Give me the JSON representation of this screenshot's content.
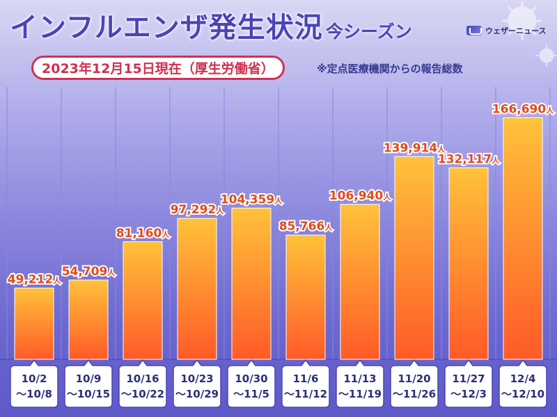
{
  "header": {
    "title": "インフルエンザ発生状況",
    "subtitle": "今シーズン",
    "date_label": "2023年12月15日現在（厚生労働省）",
    "note": "※定点医療機関からの報告総数",
    "brand": "ウェザーニュース"
  },
  "colors": {
    "bar_top": "#ffc23a",
    "bar_bottom": "#ff5a28",
    "value_text": "#e34a1a",
    "title": "#4a44b8",
    "accent": "#d03050"
  },
  "chart_data": {
    "type": "bar",
    "unit": "人",
    "categories": [
      [
        "10/2",
        "〜10/8"
      ],
      [
        "10/9",
        "〜10/15"
      ],
      [
        "10/16",
        "〜10/22"
      ],
      [
        "10/23",
        "〜10/29"
      ],
      [
        "10/30",
        "〜11/5"
      ],
      [
        "11/6",
        "〜11/12"
      ],
      [
        "11/13",
        "〜11/19"
      ],
      [
        "11/20",
        "〜11/26"
      ],
      [
        "11/27",
        "〜12/3"
      ],
      [
        "12/4",
        "〜12/10"
      ]
    ],
    "values": [
      49212,
      54709,
      81160,
      97292,
      104359,
      85766,
      106940,
      139914,
      132117,
      166690
    ],
    "value_labels": [
      "49,212",
      "54,709",
      "81,160",
      "97,292",
      "104,359",
      "85,766",
      "106,940",
      "139,914",
      "132,117",
      "166,690"
    ],
    "ylim": [
      0,
      200000
    ],
    "grid": true,
    "legend": "none"
  }
}
